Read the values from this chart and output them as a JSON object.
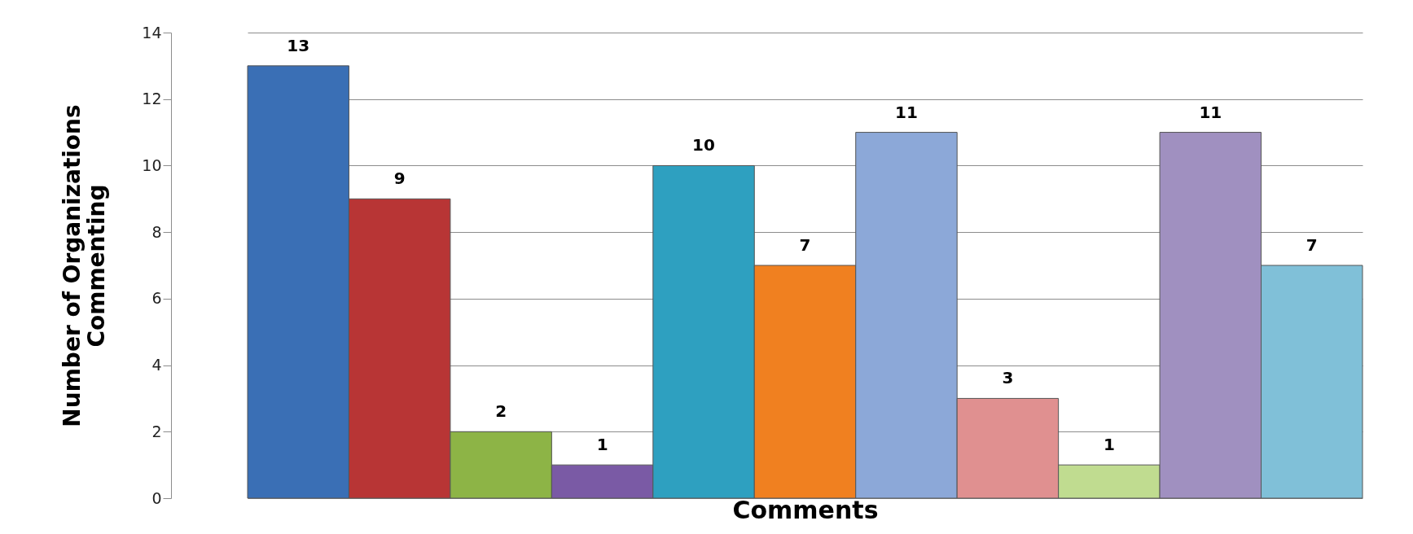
{
  "chart_data": {
    "type": "bar",
    "xlabel": "Comments",
    "ylabel": "Number of Organizations\nCommenting",
    "categories": [
      null,
      null,
      null,
      null,
      null,
      null,
      null,
      null,
      null,
      null,
      null
    ],
    "values": [
      13,
      9,
      2,
      1,
      10,
      7,
      11,
      3,
      1,
      11,
      7
    ],
    "colors": [
      "#3a6fb5",
      "#b83535",
      "#8db446",
      "#7a5aa5",
      "#2ea0c0",
      "#f08020",
      "#8ca8d8",
      "#e09090",
      "#c0dc90",
      "#a090c0",
      "#80c0d8"
    ],
    "ylim": [
      0,
      14
    ],
    "yticks": [
      0,
      2,
      4,
      6,
      8,
      10,
      12,
      14
    ],
    "grid": "y",
    "data_labels": true
  }
}
